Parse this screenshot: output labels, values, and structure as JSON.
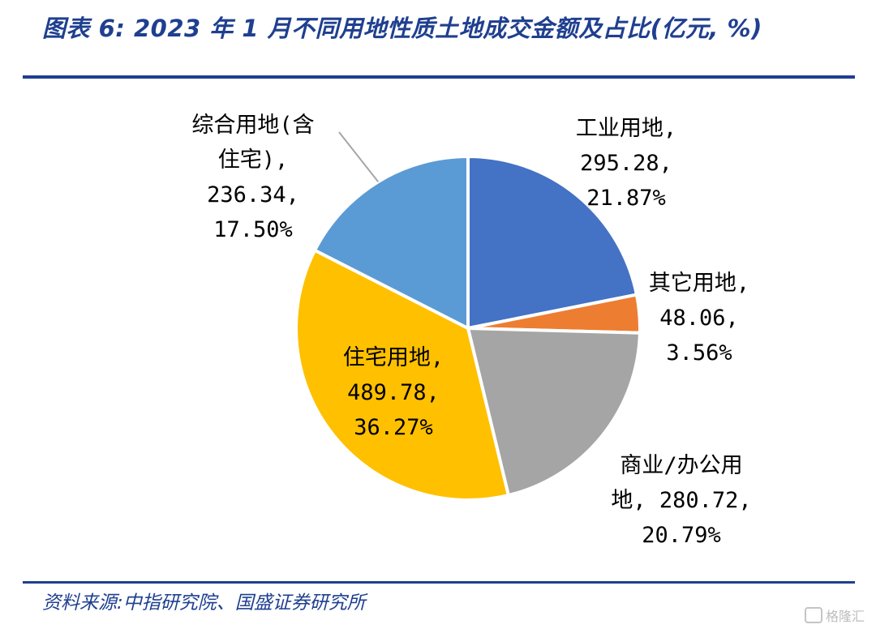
{
  "title": "图表 6: 2023 年 1 月不同用地性质土地成交金额及占比(亿元, %)",
  "source": "资料来源:中指研究院、国盛证券研究所",
  "watermark": "格隆汇",
  "chart_data": {
    "type": "pie",
    "unit": "亿元, %",
    "slices": [
      {
        "name": "工业用地",
        "value": 295.28,
        "percent": "21.87%",
        "color": "#4472c4",
        "label_lines": [
          "工业用地,",
          "295.28,",
          "21.87%"
        ]
      },
      {
        "name": "其它用地",
        "value": 48.06,
        "percent": "3.56%",
        "color": "#ed7d31",
        "label_lines": [
          "其它用地,",
          "48.06,",
          "3.56%"
        ]
      },
      {
        "name": "商业/办公用地",
        "value": 280.72,
        "percent": "20.79%",
        "color": "#a5a5a5",
        "label_lines": [
          "商业/办公用",
          "地, 280.72,",
          "20.79%"
        ]
      },
      {
        "name": "住宅用地",
        "value": 489.78,
        "percent": "36.27%",
        "color": "#ffc000",
        "label_lines": [
          "住宅用地,",
          "489.78,",
          "36.27%"
        ]
      },
      {
        "name": "综合用地(含住宅)",
        "value": 236.34,
        "percent": "17.50%",
        "color": "#5b9bd5",
        "label_lines": [
          "综合用地(含",
          "住宅),",
          "236.34,",
          "17.50%"
        ]
      }
    ]
  }
}
